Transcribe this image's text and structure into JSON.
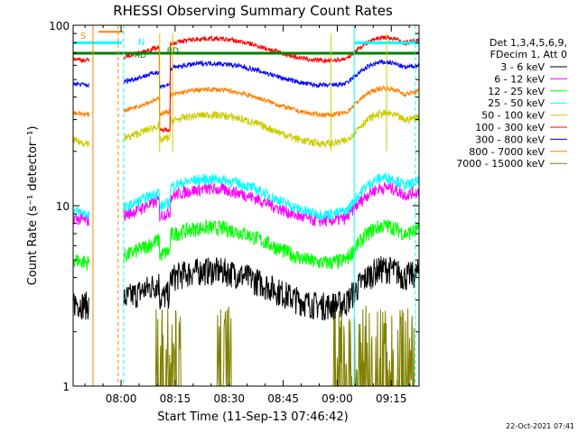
{
  "chart_data": {
    "type": "line",
    "title": "RHESSI Observing Summary Count Rates",
    "xlabel": "Start Time (11-Sep-13 07:46:42)",
    "ylabel": "Count Rate (s⁻¹ detector⁻¹)",
    "yscale": "log",
    "ylim": [
      1,
      100
    ],
    "y_tick_labels": [
      "1",
      "10",
      "100"
    ],
    "y_ticks": [
      1,
      10,
      100
    ],
    "xlim_minutes": [
      0,
      96
    ],
    "x_ticks_minutes": [
      13.3,
      28.3,
      43.3,
      58.3,
      73.3,
      88.3
    ],
    "x_tick_labels": [
      "08:00",
      "08:15",
      "08:30",
      "08:45",
      "09:00",
      "09:15"
    ],
    "legend": {
      "placement": "right",
      "header": [
        "Det 1,3,4,5,6,9,",
        "FDecim 1, Att 0"
      ]
    },
    "series": [
      {
        "name": "3 - 6 keV",
        "color": "#000000",
        "base": 3.6,
        "amp": 0.22,
        "noise": 0.18
      },
      {
        "name": "6 - 12 keV",
        "color": "#ff00ff",
        "base": 10.3,
        "amp": 0.2,
        "noise": 0.08
      },
      {
        "name": "12 - 25 keV",
        "color": "#00ff00",
        "base": 6.2,
        "amp": 0.22,
        "noise": 0.1
      },
      {
        "name": "25 - 50 keV",
        "color": "#00ffff",
        "base": 11.5,
        "amp": 0.22,
        "noise": 0.07
      },
      {
        "name": "50 - 100 keV",
        "color": "#cccc00",
        "base": 27.0,
        "amp": 0.18,
        "noise": 0.05
      },
      {
        "name": "100 - 300 keV",
        "color": "#ff0000",
        "base": 74.0,
        "amp": 0.14,
        "noise": 0.03
      },
      {
        "name": "300 - 800 keV",
        "color": "#0000ff",
        "base": 54.0,
        "amp": 0.14,
        "noise": 0.03
      },
      {
        "name": "800 - 7000 keV",
        "color": "#ff8000",
        "base": 38.0,
        "amp": 0.16,
        "noise": 0.03
      },
      {
        "name": "7000 - 15000 keV",
        "color": "#808000",
        "base": 1.7,
        "amp": 0.0,
        "noise": 0.25
      }
    ],
    "flags": [
      {
        "label": "S",
        "color": "#ff8000"
      },
      {
        "label": "N",
        "color": "#00ffff"
      },
      {
        "label": "RD",
        "color": "#008000"
      },
      {
        "label": "RD",
        "color": "#008000"
      }
    ],
    "flag_level": 70,
    "timestamp": "22-Oct-2021 07:41"
  }
}
